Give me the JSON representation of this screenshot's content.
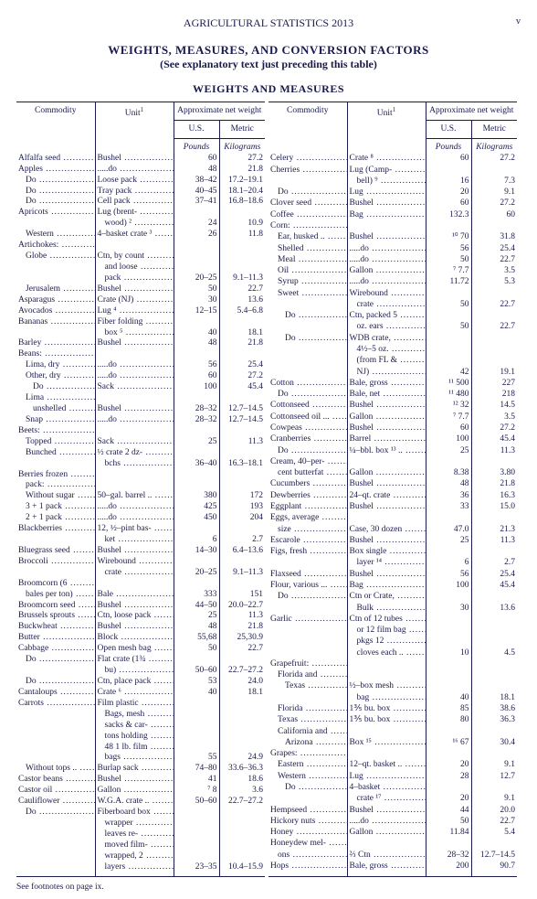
{
  "header": {
    "doc_title": "AGRICULTURAL  STATISTICS  2013",
    "page_marker": "v",
    "title": "WEIGHTS, MEASURES, AND CONVERSION FACTORS",
    "subtitle": "(See explanatory text just preceding this table)",
    "section": "WEIGHTS  AND  MEASURES"
  },
  "columns": {
    "commodity": "Commodity",
    "unit": "Unit",
    "unit_fn": "1",
    "approx": "Approximate net weight",
    "us": "U.S.",
    "metric": "Metric",
    "us_unit": "Pounds",
    "metric_unit": "Kilograms"
  },
  "footnote": "See footnotes on page ix.",
  "left": [
    {
      "c": "Alfalfa seed",
      "u": "Bushel",
      "us": "60",
      "m": "27.2"
    },
    {
      "c": "Apples",
      "u": ".....do",
      "us": "48",
      "m": "21.8"
    },
    {
      "c": "Do",
      "i": 1,
      "u": "Loose pack",
      "us": "38–42",
      "m": "17.2–19.1"
    },
    {
      "c": "Do",
      "i": 1,
      "u": "Tray pack",
      "us": "40–45",
      "m": "18.1–20.4"
    },
    {
      "c": "Do",
      "i": 1,
      "u": "Cell pack",
      "us": "37–41",
      "m": "16.8–18.6"
    },
    {
      "c": "Apricots",
      "u": "Lug (brent-"
    },
    {
      "u": "wood) ²",
      "ui": 1,
      "us": "24",
      "m": "10.9"
    },
    {
      "c": "Western",
      "i": 1,
      "u": "4–basket crate ³",
      "us": "26",
      "m": "11.8"
    },
    {
      "c": "Artichokes:"
    },
    {
      "c": "Globe",
      "i": 1,
      "u": "Ctn, by count"
    },
    {
      "u": "and loose",
      "ui": 1
    },
    {
      "u": "pack",
      "ui": 1,
      "us": "20–25",
      "m": "9.1–11.3"
    },
    {
      "c": "Jerusalem",
      "i": 1,
      "u": "Bushel",
      "us": "50",
      "m": "22.7"
    },
    {
      "c": "Asparagus",
      "u": "Crate (NJ)",
      "us": "30",
      "m": "13.6"
    },
    {
      "c": "Avocados",
      "u": "Lug ⁴",
      "us": "12–15",
      "m": "5.4–6.8"
    },
    {
      "c": "Bananas",
      "u": "Fiber folding"
    },
    {
      "u": "box ⁵",
      "ui": 1,
      "us": "40",
      "m": "18.1"
    },
    {
      "c": "Barley",
      "u": "Bushel",
      "us": "48",
      "m": "21.8"
    },
    {
      "c": "Beans:"
    },
    {
      "c": "Lima, dry",
      "i": 1,
      "u": ".....do",
      "us": "56",
      "m": "25.4"
    },
    {
      "c": "Other, dry",
      "i": 1,
      "u": ".....do",
      "us": "60",
      "m": "27.2"
    },
    {
      "c": "Do",
      "i": 2,
      "u": "Sack",
      "us": "100",
      "m": "45.4"
    },
    {
      "c": "Lima",
      "i": 1
    },
    {
      "c": "unshelled",
      "i": 2,
      "u": "Bushel",
      "us": "28–32",
      "m": "12.7–14.5"
    },
    {
      "c": "Snap",
      "i": 1,
      "u": ".....do",
      "us": "28–32",
      "m": "12.7–14.5"
    },
    {
      "c": "Beets:"
    },
    {
      "c": "Topped",
      "i": 1,
      "u": "Sack",
      "us": "25",
      "m": "11.3"
    },
    {
      "c": "Bunched",
      "i": 1,
      "u": "½ crate 2 dz-"
    },
    {
      "u": "bchs",
      "ui": 1,
      "us": "36–40",
      "m": "16.3–18.1"
    },
    {
      "c": "Berries frozen"
    },
    {
      "c": "pack:",
      "i": 1
    },
    {
      "c": "Without sugar",
      "i": 1,
      "u": "50–gal. barrel ..",
      "us": "380",
      "m": "172"
    },
    {
      "c": "3 + 1 pack",
      "i": 1,
      "u": ".....do",
      "us": "425",
      "m": "193"
    },
    {
      "c": "2 + 1 pack",
      "i": 1,
      "u": ".....do",
      "us": "450",
      "m": "204"
    },
    {
      "c": "Blackberries",
      "u": "12, ½–pint bas-"
    },
    {
      "u": "ket",
      "ui": 1,
      "us": "6",
      "m": "2.7"
    },
    {
      "c": "Bluegrass seed",
      "u": "Bushel",
      "us": "14–30",
      "m": "6.4–13.6"
    },
    {
      "c": "Broccoli",
      "u": "Wirebound"
    },
    {
      "u": "crate",
      "ui": 1,
      "us": "20–25",
      "m": "9.1–11.3"
    },
    {
      "c": "Broomcorn (6"
    },
    {
      "c": "bales per ton)",
      "i": 1,
      "u": "Bale",
      "us": "333",
      "m": "151"
    },
    {
      "c": "Broomcorn seed",
      "u": "Bushel",
      "us": "44–50",
      "m": "20.0–22.7"
    },
    {
      "c": "Brussels sprouts",
      "u": "Ctn, loose pack",
      "us": "25",
      "m": "11.3"
    },
    {
      "c": "Buckwheat",
      "u": "Bushel",
      "us": "48",
      "m": "21.8"
    },
    {
      "c": "Butter",
      "u": "Block",
      "us": "55,68",
      "m": "25,30.9"
    },
    {
      "c": "Cabbage",
      "u": "Open mesh bag",
      "us": "50",
      "m": "22.7"
    },
    {
      "c": "Do",
      "i": 1,
      "u": "Flat crate (1¾"
    },
    {
      "u": "bu)",
      "ui": 1,
      "us": "50–60",
      "m": "22.7–27.2"
    },
    {
      "c": "Do",
      "i": 1,
      "u": "Ctn, place pack",
      "us": "53",
      "m": "24.0"
    },
    {
      "c": "Cantaloups",
      "u": "Crate ⁶",
      "us": "40",
      "m": "18.1"
    },
    {
      "c": "Carrots",
      "u": "Film plastic"
    },
    {
      "u": "Bags, mesh",
      "ui": 1
    },
    {
      "u": "sacks & car-",
      "ui": 1
    },
    {
      "u": "tons holding",
      "ui": 1
    },
    {
      "u": "48 1 lb. film",
      "ui": 1
    },
    {
      "u": "bags",
      "ui": 1,
      "us": "55",
      "m": "24.9"
    },
    {
      "c": "Without tops ..",
      "i": 1,
      "u": "Burlap sack",
      "us": "74–80",
      "m": "33.6–36.3"
    },
    {
      "c": "Castor beans",
      "u": "Bushel",
      "us": "41",
      "m": "18.6"
    },
    {
      "c": "Castor oil",
      "u": "Gallon",
      "us": "⁷ 8",
      "m": "3.6"
    },
    {
      "c": "Cauliflower",
      "u": "W.G.A. crate ..",
      "us": "50–60",
      "m": "22.7–27.2"
    },
    {
      "c": "Do",
      "i": 1,
      "u": "Fiberboard box"
    },
    {
      "u": "wrapper",
      "ui": 1
    },
    {
      "u": "leaves re-",
      "ui": 1
    },
    {
      "u": "moved film-",
      "ui": 1
    },
    {
      "u": "wrapped, 2",
      "ui": 1
    },
    {
      "u": "layers",
      "ui": 1,
      "us": "23–35",
      "m": "10.4–15.9"
    }
  ],
  "right": [
    {
      "c": "Celery",
      "u": "Crate ⁸",
      "us": "60",
      "m": "27.2"
    },
    {
      "c": "Cherries",
      "u": "Lug (Camp-"
    },
    {
      "u": "bell) ⁹",
      "ui": 1,
      "us": "16",
      "m": "7.3"
    },
    {
      "c": "Do",
      "i": 1,
      "u": "Lug",
      "us": "20",
      "m": "9.1"
    },
    {
      "c": "Clover seed",
      "u": "Bushel",
      "us": "60",
      "m": "27.2"
    },
    {
      "c": "Coffee",
      "u": "Bag",
      "us": "132.3",
      "m": "60"
    },
    {
      "c": "Corn:"
    },
    {
      "c": "Ear, husked ..",
      "i": 1,
      "u": "Bushel",
      "us": "¹⁰ 70",
      "m": "31.8"
    },
    {
      "c": "Shelled",
      "i": 1,
      "u": ".....do",
      "us": "56",
      "m": "25.4"
    },
    {
      "c": "Meal",
      "i": 1,
      "u": ".....do",
      "us": "50",
      "m": "22.7"
    },
    {
      "c": "Oil",
      "i": 1,
      "u": "Gallon",
      "us": "⁷ 7.7",
      "m": "3.5"
    },
    {
      "c": "Syrup",
      "i": 1,
      "u": ".....do",
      "us": "11.72",
      "m": "5.3"
    },
    {
      "c": "Sweet",
      "i": 1,
      "u": "Wirebound"
    },
    {
      "u": "crate",
      "ui": 1,
      "us": "50",
      "m": "22.7"
    },
    {
      "c": "Do",
      "i": 2,
      "u": "Ctn, packed 5"
    },
    {
      "u": "oz. ears",
      "ui": 1,
      "us": "50",
      "m": "22.7"
    },
    {
      "c": "Do",
      "i": 2,
      "u": "WDB crate,"
    },
    {
      "u": "4½–5 oz.",
      "ui": 1
    },
    {
      "u": "(from FL &",
      "ui": 1
    },
    {
      "u": "NJ)",
      "ui": 1,
      "us": "42",
      "m": "19.1"
    },
    {
      "c": "Cotton",
      "u": "Bale, gross",
      "us": "¹¹ 500",
      "m": "227"
    },
    {
      "c": "Do",
      "i": 1,
      "u": "Bale, net",
      "us": "¹¹ 480",
      "m": "218"
    },
    {
      "c": "Cottonseed",
      "u": "Bushel",
      "us": "¹² 32",
      "m": "14.5"
    },
    {
      "c": "Cottonseed oil ...",
      "u": "Gallon",
      "us": "⁷ 7.7",
      "m": "3.5"
    },
    {
      "c": "Cowpeas",
      "u": "Bushel",
      "us": "60",
      "m": "27.2"
    },
    {
      "c": "Cranberries",
      "u": "Barrel",
      "us": "100",
      "m": "45.4"
    },
    {
      "c": "Do",
      "i": 1,
      "u": "¼–bbl. box ¹³ ..",
      "us": "25",
      "m": "11.3"
    },
    {
      "c": "Cream, 40–per-"
    },
    {
      "c": "cent butterfat",
      "i": 1,
      "u": "Gallon",
      "us": "8.38",
      "m": "3.80"
    },
    {
      "c": "Cucumbers",
      "u": "Bushel",
      "us": "48",
      "m": "21.8"
    },
    {
      "c": "Dewberries",
      "u": "24–qt. crate",
      "us": "36",
      "m": "16.3"
    },
    {
      "c": "Eggplant",
      "u": "Bushel",
      "us": "33",
      "m": "15.0"
    },
    {
      "c": "Eggs, average"
    },
    {
      "c": "size",
      "i": 1,
      "u": "Case, 30 dozen",
      "us": "47.0",
      "m": "21.3"
    },
    {
      "c": "Escarole",
      "u": "Bushel",
      "us": "25",
      "m": "11.3"
    },
    {
      "c": "Figs, fresh",
      "u": "Box single"
    },
    {
      "u": "layer ¹⁴",
      "ui": 1,
      "us": "6",
      "m": "2.7"
    },
    {
      "c": "Flaxseed",
      "u": "Bushel",
      "us": "56",
      "m": "25.4"
    },
    {
      "c": "Flour, various ...",
      "u": "Bag",
      "us": "100",
      "m": "45.4"
    },
    {
      "c": "Do",
      "i": 1,
      "u": "Ctn or Crate,"
    },
    {
      "u": "Bulk",
      "ui": 1,
      "us": "30",
      "m": "13.6"
    },
    {
      "c": "Garlic",
      "u": "Ctn of 12 tubes"
    },
    {
      "u": "or 12 film bag",
      "ui": 1
    },
    {
      "u": "pkgs 12",
      "ui": 1
    },
    {
      "u": "cloves each ..",
      "ui": 1,
      "us": "10",
      "m": "4.5"
    },
    {
      "c": "Grapefruit:"
    },
    {
      "c": "Florida and",
      "i": 1
    },
    {
      "c": "Texas",
      "i": 2,
      "u": "½–box mesh"
    },
    {
      "u": "bag",
      "ui": 1,
      "us": "40",
      "m": "18.1"
    },
    {
      "c": "Florida",
      "i": 1,
      "u": "1⅗ bu. box",
      "us": "85",
      "m": "38.6"
    },
    {
      "c": "Texas",
      "i": 1,
      "u": "1⅗ bu. box",
      "us": "80",
      "m": "36.3"
    },
    {
      "c": "California and",
      "i": 1
    },
    {
      "c": "Arizona",
      "i": 2,
      "u": "Box ¹⁵",
      "us": "¹⁶ 67",
      "m": "30.4"
    },
    {
      "c": "Grapes:"
    },
    {
      "c": "Eastern",
      "i": 1,
      "u": "12–qt. basket ..",
      "us": "20",
      "m": "9.1"
    },
    {
      "c": "Western",
      "i": 1,
      "u": "Lug",
      "us": "28",
      "m": "12.7"
    },
    {
      "c": "Do",
      "i": 2,
      "u": "4–basket"
    },
    {
      "u": "crate ¹⁷",
      "ui": 1,
      "us": "20",
      "m": "9.1"
    },
    {
      "c": "Hempseed",
      "u": "Bushel",
      "us": "44",
      "m": "20.0"
    },
    {
      "c": "Hickory nuts",
      "u": ".....do",
      "us": "50",
      "m": "22.7"
    },
    {
      "c": "Honey",
      "u": "Gallon",
      "us": "11.84",
      "m": "5.4"
    },
    {
      "c": "Honeydew mel-"
    },
    {
      "c": "ons",
      "i": 1,
      "u": "⅔ Ctn",
      "us": "28–32",
      "m": "12.7–14.5"
    },
    {
      "c": "Hops",
      "u": "Bale, gross",
      "us": "200",
      "m": "90.7"
    }
  ]
}
